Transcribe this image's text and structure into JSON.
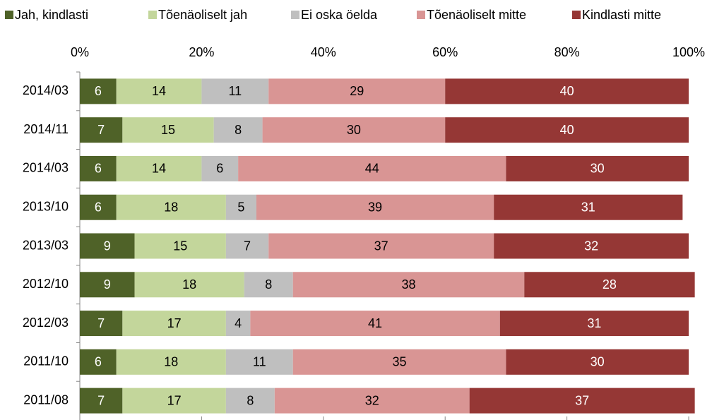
{
  "chart_data": {
    "type": "stacked_barh",
    "categories": [
      "2014/03",
      "2014/11",
      "2014/03",
      "2013/10",
      "2013/03",
      "2012/10",
      "2012/03",
      "2011/10",
      "2011/08"
    ],
    "series": [
      {
        "name": "Jah, kindlasti",
        "color": "#4f6228",
        "label_color": "#ffffff",
        "values": [
          6,
          7,
          6,
          6,
          9,
          9,
          7,
          6,
          7
        ]
      },
      {
        "name": "Tõenäoliselt jah",
        "color": "#c3d69b",
        "label_color": "#000000",
        "values": [
          14,
          15,
          14,
          18,
          15,
          18,
          17,
          18,
          17
        ]
      },
      {
        "name": "Ei oska öelda",
        "color": "#bfbfbf",
        "label_color": "#000000",
        "values": [
          11,
          8,
          6,
          5,
          7,
          8,
          4,
          11,
          8
        ]
      },
      {
        "name": "Tõenäoliselt mitte",
        "color": "#d99594",
        "label_color": "#000000",
        "values": [
          29,
          30,
          44,
          39,
          37,
          38,
          41,
          35,
          32
        ]
      },
      {
        "name": "Kindlasti mitte",
        "color": "#953735",
        "label_color": "#ffffff",
        "values": [
          40,
          40,
          30,
          31,
          32,
          28,
          31,
          30,
          37
        ]
      }
    ],
    "xlim": [
      0,
      100
    ],
    "xticks": [
      {
        "value": 0,
        "label": "0%"
      },
      {
        "value": 20,
        "label": "20%"
      },
      {
        "value": 40,
        "label": "40%"
      },
      {
        "value": 60,
        "label": "60%"
      },
      {
        "value": 80,
        "label": "80%"
      },
      {
        "value": 100,
        "label": "100%"
      }
    ],
    "legend": "top"
  }
}
